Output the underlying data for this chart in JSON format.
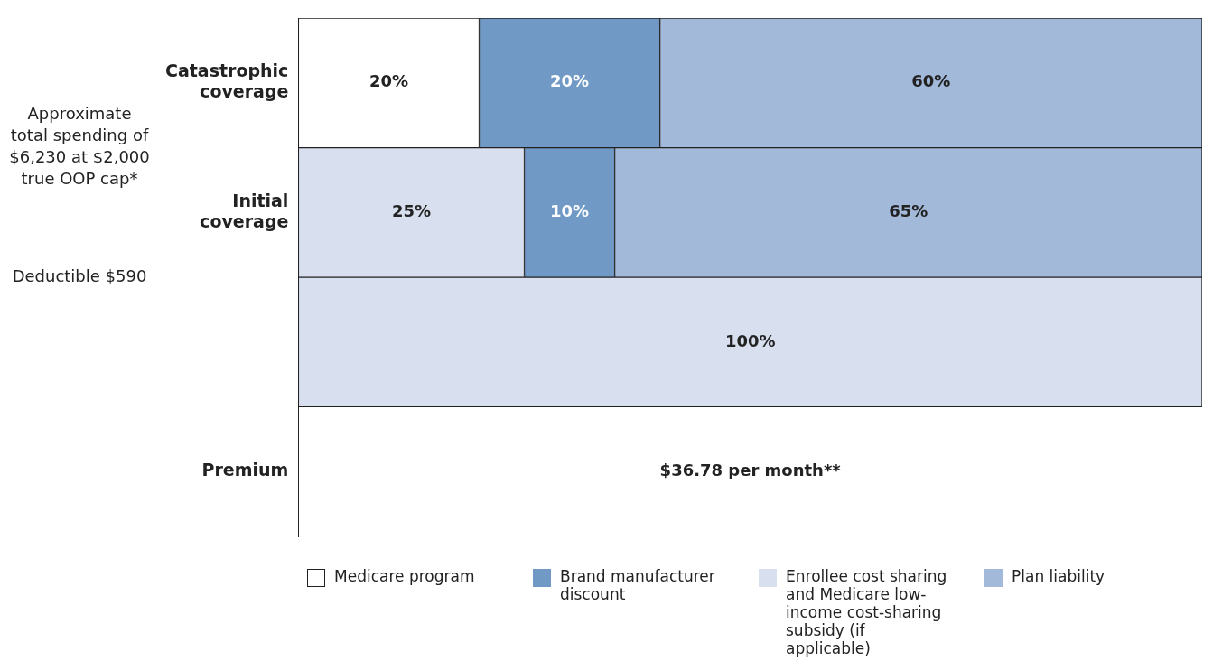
{
  "chart_data": {
    "type": "bar",
    "orientation": "horizontal",
    "stacked": true,
    "categories": [
      "Catastrophic coverage",
      "Initial coverage",
      null,
      "Premium"
    ],
    "series": [
      {
        "name": "Medicare program",
        "color": "#ffffff",
        "values": [
          20,
          null,
          null,
          null
        ],
        "value_labels": [
          "20%",
          null,
          null,
          null
        ]
      },
      {
        "name": "Enrollee cost sharing and Medicare low-income cost-sharing subsidy (if applicable)",
        "color": "#d8e0ef",
        "values": [
          null,
          25,
          100,
          null
        ],
        "value_labels": [
          null,
          "25%",
          "100%",
          null
        ]
      },
      {
        "name": "Brand manufacturer discount",
        "color": "#7099c6",
        "values": [
          20,
          10,
          null,
          null
        ],
        "value_labels": [
          "20%",
          "10%",
          null,
          null
        ]
      },
      {
        "name": "Plan liability",
        "color": "#a2b9da",
        "values": [
          60,
          65,
          null,
          null
        ],
        "value_labels": [
          "60%",
          "65%",
          null,
          null
        ]
      }
    ],
    "tick_labels": "y",
    "grid": false,
    "legend": "bottom",
    "annotations": [
      "Approximate total spending of $6,230 at $2,000 true OOP cap*",
      "Deductible $590",
      "$36.78 per month**"
    ]
  }
}
